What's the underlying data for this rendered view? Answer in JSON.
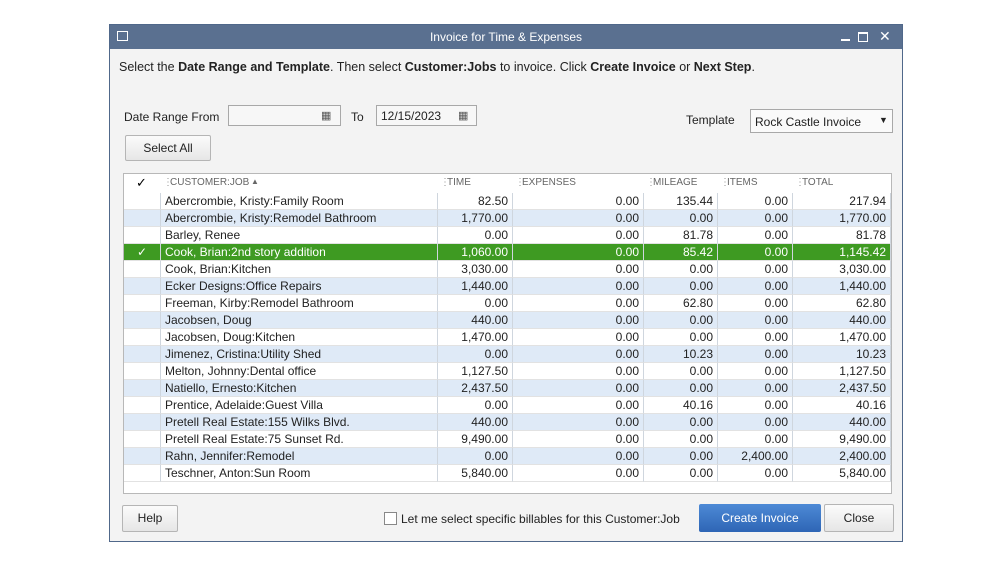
{
  "window": {
    "title": "Invoice for Time & Expenses"
  },
  "instruction": [
    "Select the ",
    "Date Range and Template",
    ". Then select ",
    "Customer:Jobs",
    " to invoice. Click ",
    "Create Invoice",
    " or ",
    "Next Step",
    "."
  ],
  "date_range": {
    "from_label": "Date Range From",
    "to_label": "To",
    "to_value": "12/15/2023"
  },
  "template": {
    "label": "Template",
    "value": "Rock Castle Invoice"
  },
  "select_all": "Select All",
  "table": {
    "columns": [
      "CUSTOMER:JOB",
      "TIME",
      "EXPENSES",
      "MILEAGE",
      "ITEMS",
      "TOTAL"
    ],
    "selected_row": 3,
    "rows": [
      [
        "Abercrombie, Kristy:Family Room",
        "82.50",
        "0.00",
        "135.44",
        "0.00",
        "217.94"
      ],
      [
        "Abercrombie, Kristy:Remodel Bathroom",
        "1,770.00",
        "0.00",
        "0.00",
        "0.00",
        "1,770.00"
      ],
      [
        "Barley, Renee",
        "0.00",
        "0.00",
        "81.78",
        "0.00",
        "81.78"
      ],
      [
        "Cook, Brian:2nd story addition",
        "1,060.00",
        "0.00",
        "85.42",
        "0.00",
        "1,145.42"
      ],
      [
        "Cook, Brian:Kitchen",
        "3,030.00",
        "0.00",
        "0.00",
        "0.00",
        "3,030.00"
      ],
      [
        "Ecker Designs:Office Repairs",
        "1,440.00",
        "0.00",
        "0.00",
        "0.00",
        "1,440.00"
      ],
      [
        "Freeman, Kirby:Remodel Bathroom",
        "0.00",
        "0.00",
        "62.80",
        "0.00",
        "62.80"
      ],
      [
        "Jacobsen, Doug",
        "440.00",
        "0.00",
        "0.00",
        "0.00",
        "440.00"
      ],
      [
        "Jacobsen, Doug:Kitchen",
        "1,470.00",
        "0.00",
        "0.00",
        "0.00",
        "1,470.00"
      ],
      [
        "Jimenez, Cristina:Utility Shed",
        "0.00",
        "0.00",
        "10.23",
        "0.00",
        "10.23"
      ],
      [
        "Melton, Johnny:Dental office",
        "1,127.50",
        "0.00",
        "0.00",
        "0.00",
        "1,127.50"
      ],
      [
        "Natiello, Ernesto:Kitchen",
        "2,437.50",
        "0.00",
        "0.00",
        "0.00",
        "2,437.50"
      ],
      [
        "Prentice, Adelaide:Guest Villa",
        "0.00",
        "0.00",
        "40.16",
        "0.00",
        "40.16"
      ],
      [
        "Pretell Real Estate:155 Wilks Blvd.",
        "440.00",
        "0.00",
        "0.00",
        "0.00",
        "440.00"
      ],
      [
        "Pretell Real Estate:75 Sunset Rd.",
        "9,490.00",
        "0.00",
        "0.00",
        "0.00",
        "9,490.00"
      ],
      [
        "Rahn, Jennifer:Remodel",
        "0.00",
        "0.00",
        "0.00",
        "2,400.00",
        "2,400.00"
      ],
      [
        "Teschner, Anton:Sun Room",
        "5,840.00",
        "0.00",
        "0.00",
        "0.00",
        "5,840.00"
      ]
    ]
  },
  "footer": {
    "help": "Help",
    "checkbox_label": "Let me select specific billables for this Customer:Job",
    "create": "Create Invoice",
    "close": "Close"
  }
}
